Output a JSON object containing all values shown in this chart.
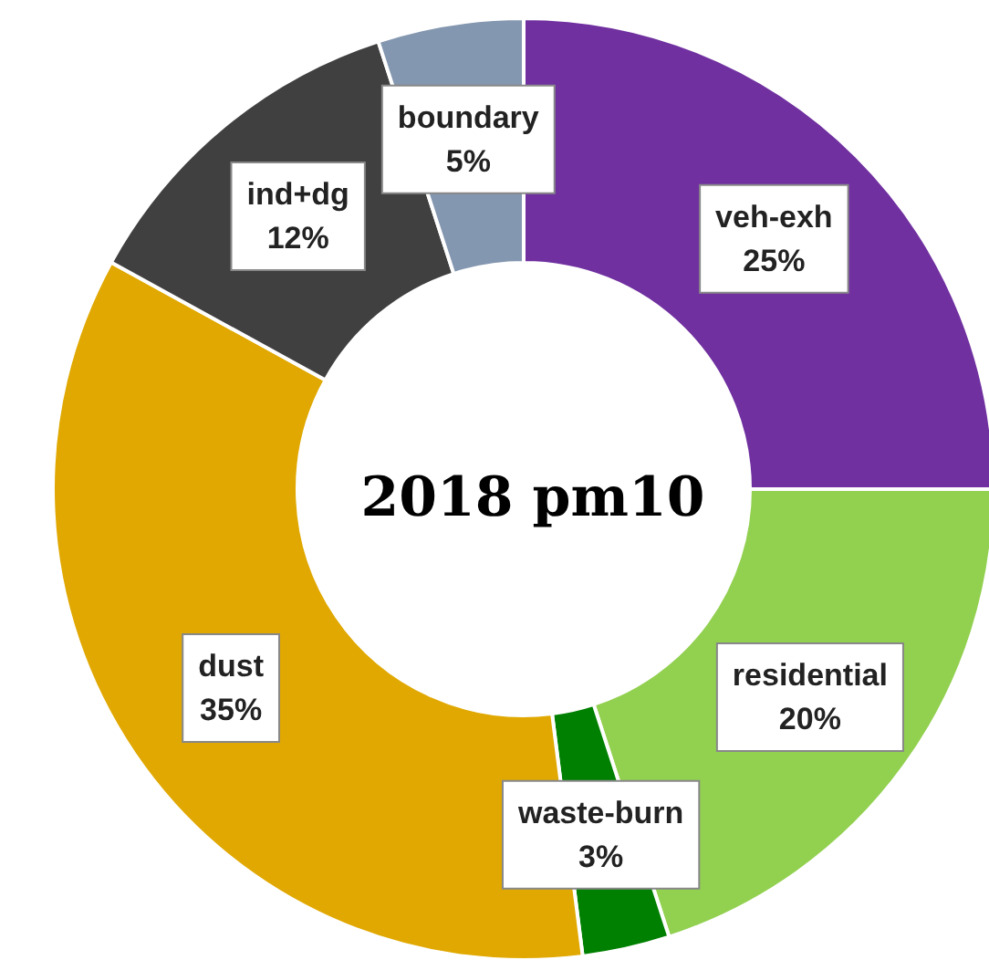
{
  "chart_data": {
    "type": "donut",
    "title": "2018 pm10",
    "categories": [
      "veh-exh",
      "residential",
      "waste-burn",
      "dust",
      "ind+dg",
      "boundary"
    ],
    "values": [
      25,
      20,
      3,
      35,
      12,
      5
    ],
    "value_labels": [
      "25%",
      "20%",
      "3%",
      "35%",
      "12%",
      "5%"
    ],
    "colors": [
      "#7030a0",
      "#92d050",
      "#008000",
      "#e0a800",
      "#404040",
      "#8497b0"
    ],
    "legend": false
  }
}
